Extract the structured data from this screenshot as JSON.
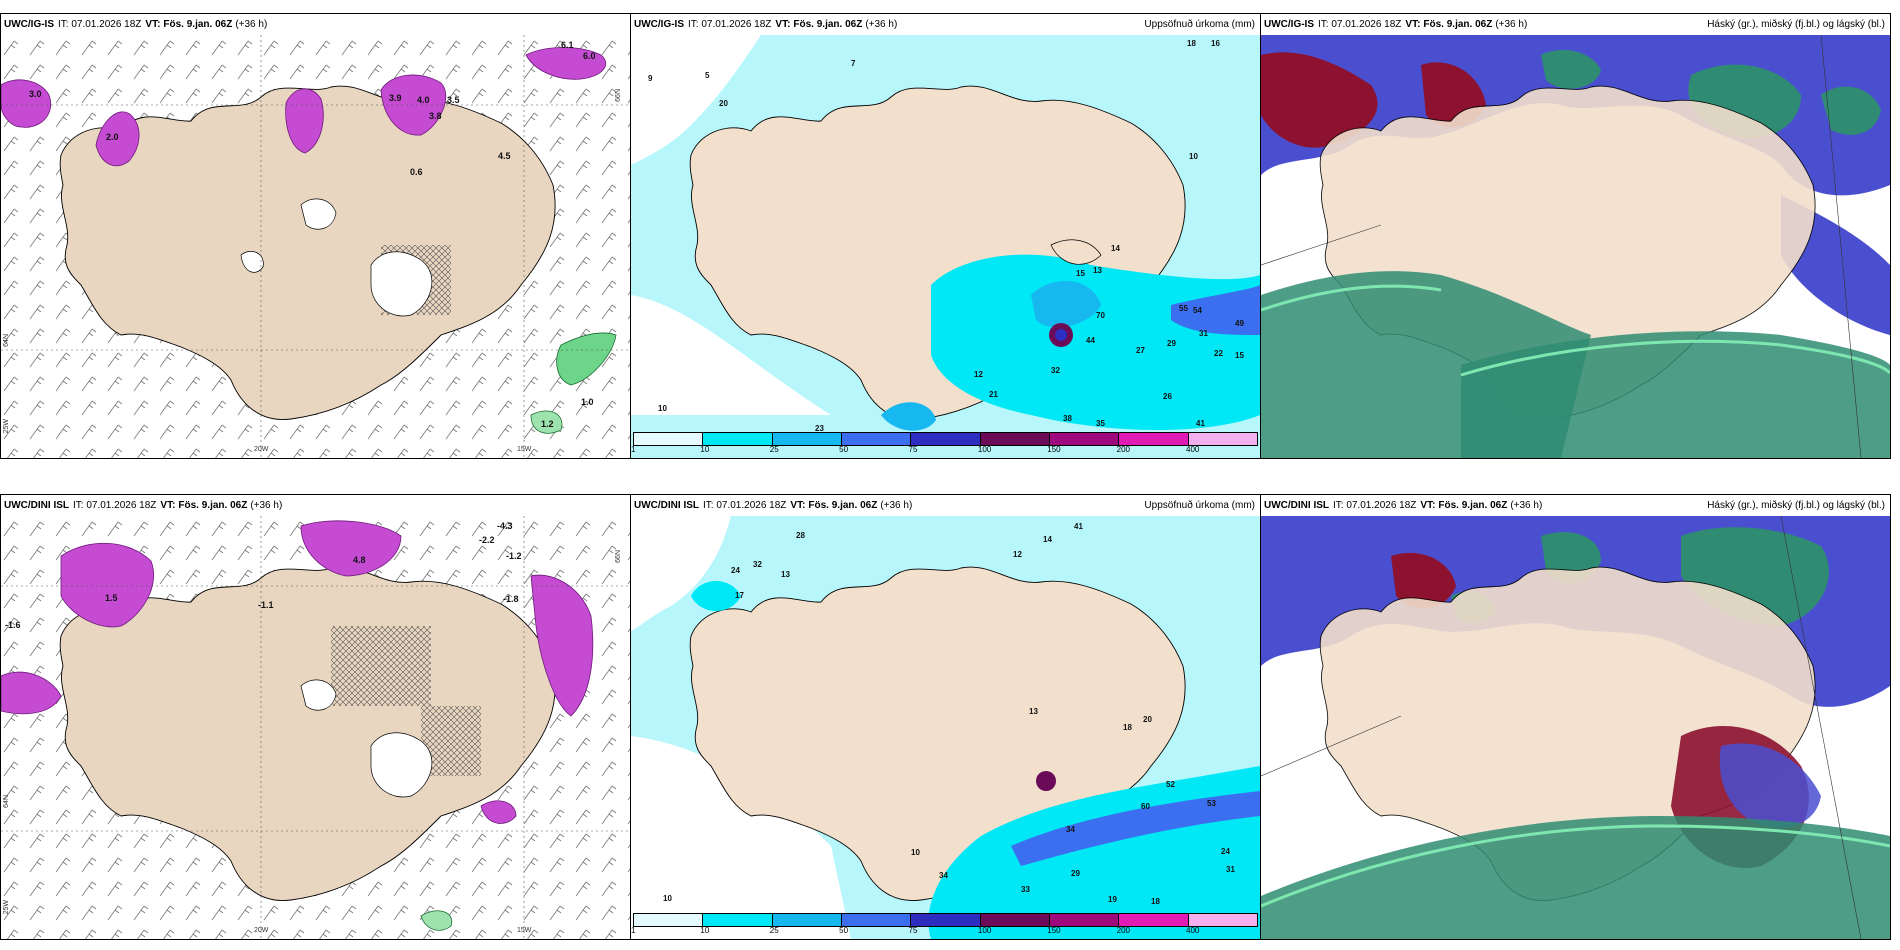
{
  "panels": {
    "ig_wind": {
      "model": "UWC/IG-IS",
      "it": "IT: 07.01.2026 18Z",
      "vt_label": "VT:",
      "vt_time": "Fös. 9.jan. 06Z",
      "lead": "(+36 h)",
      "right_title": "",
      "lon_labels": [
        "20W",
        "15W"
      ],
      "lat_labels": [
        "66N",
        "64N",
        "25W"
      ],
      "values": [
        "6.1",
        "6.0",
        "3.0",
        "3.9",
        "4.0",
        "3.5",
        "3.8",
        "4.5",
        "0.6",
        "1.0",
        "1.2",
        "2.0"
      ]
    },
    "ig_precip": {
      "model": "UWC/IG-IS",
      "it": "IT: 07.01.2026 18Z",
      "vt_label": "VT:",
      "vt_time": "Fös. 9.jan. 06Z",
      "lead": "(+36 h)",
      "right_title": "Uppsöfnuð úrkoma (mm)",
      "values": [
        "18",
        "16",
        "9",
        "7",
        "5",
        "10",
        "20",
        "13",
        "14",
        "15",
        "70",
        "44",
        "29",
        "55",
        "54",
        "31",
        "49",
        "22",
        "15",
        "27",
        "32",
        "26",
        "38",
        "35",
        "41",
        "23",
        "21",
        "12",
        "10"
      ]
    },
    "ig_cloud": {
      "model": "UWC/IG-IS",
      "it": "IT: 07.01.2026 18Z",
      "vt_label": "VT:",
      "vt_time": "Fös. 9.jan. 06Z",
      "lead": "(+36 h)",
      "right_title": "Háský (gr.), miðský (fj.bl.) og lágský (bl.)"
    },
    "dini_wind": {
      "model": "UWC/DINI ISL",
      "it": "IT: 07.01.2026 18Z",
      "vt_label": "VT:",
      "vt_time": "Fös. 9.jan. 06Z",
      "lead": "(+36 h)",
      "right_title": "",
      "lon_labels": [
        "20W",
        "15W"
      ],
      "lat_labels": [
        "66N",
        "64N",
        "25W"
      ],
      "values": [
        "-4.3",
        "-2.2",
        "-1.2",
        "-1.8",
        "-1.1",
        "-1.6",
        "4.8",
        "1.5"
      ]
    },
    "dini_precip": {
      "model": "UWC/DINI ISL",
      "it": "IT: 07.01.2026 18Z",
      "vt_label": "VT:",
      "vt_time": "Fös. 9.jan. 06Z",
      "lead": "(+36 h)",
      "right_title": "Uppsöfnuð úrkoma (mm)",
      "values": [
        "28",
        "24",
        "32",
        "17",
        "13",
        "41",
        "10",
        "12",
        "14",
        "20",
        "18",
        "52",
        "53",
        "60",
        "34",
        "24",
        "31",
        "29",
        "33",
        "19",
        "18",
        "13",
        "10",
        "34"
      ]
    },
    "dini_cloud": {
      "model": "UWC/DINI ISL",
      "it": "IT: 07.01.2026 18Z",
      "vt_label": "VT:",
      "vt_time": "Fös. 9.jan. 06Z",
      "lead": "(+36 h)",
      "right_title": "Háský (gr.), miðský (fj.bl.) og lágský (bl.)"
    }
  },
  "colorbar": {
    "ticks": [
      "1",
      "10",
      "25",
      "50",
      "75",
      "100",
      "150",
      "200",
      "400"
    ],
    "colors": [
      "#e6fbff",
      "#00e8f5",
      "#17b7ef",
      "#3c6ef0",
      "#2d2dc0",
      "#6b0a57",
      "#9e0a7d",
      "#e01cb5",
      "#f3b0ef"
    ]
  },
  "colors": {
    "land": "#f2dfcc",
    "precip_light": "#b7f6fb",
    "precip_mid": "#00e8f5",
    "magenta": "#c54bd3",
    "cloud_green": "#2f8c72",
    "cloud_blue": "#4a4fd0",
    "cloud_red": "#8c1230"
  }
}
